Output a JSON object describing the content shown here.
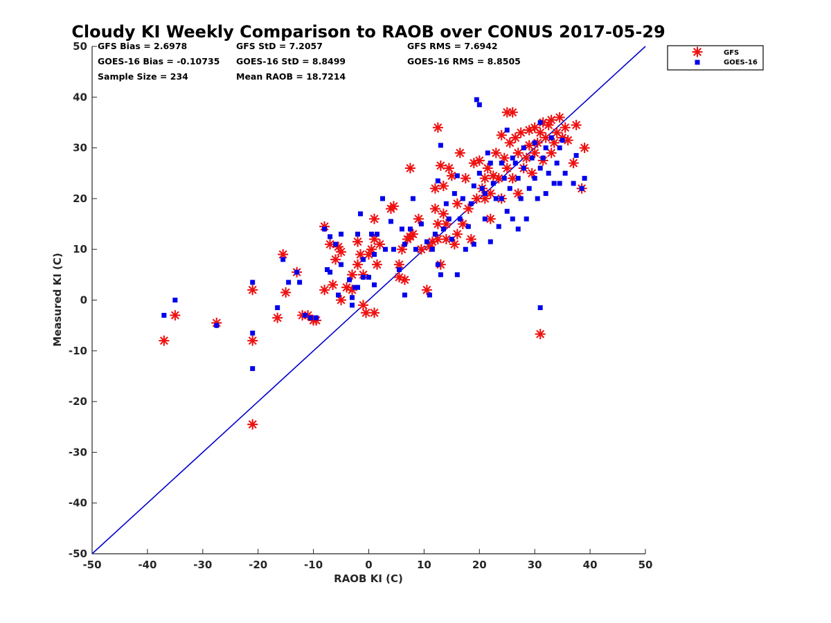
{
  "chart_data": {
    "type": "scatter",
    "title": "Cloudy KI Weekly Comparison to RAOB over CONUS 2017-05-29",
    "xlabel": "RAOB KI (C)",
    "ylabel": "Measured KI (C)",
    "xlim": [
      -50,
      50
    ],
    "ylim": [
      -50,
      50
    ],
    "xticks": [
      "-50",
      "-40",
      "-30",
      "-20",
      "-10",
      "0",
      "10",
      "20",
      "30",
      "40",
      "50"
    ],
    "yticks": [
      "50",
      "40",
      "30",
      "20",
      "10",
      "0",
      "-10",
      "-20",
      "-30",
      "-40",
      "-50"
    ],
    "grid": false,
    "legend_position": "top-right, outside plot",
    "stats": {
      "gfs_bias": "GFS Bias = 2.6978",
      "gfs_std": "GFS StD = 7.2057",
      "gfs_rms": "GFS RMS = 7.6942",
      "goes_bias": "GOES-16 Bias = -0.10735",
      "goes_std": "GOES-16 StD = 8.8499",
      "goes_rms": "GOES-16 RMS = 8.8505",
      "sample_size": "Sample Size = 234",
      "mean_raob": "Mean RAOB = 18.7214"
    },
    "reference_line": {
      "from": [
        -50,
        -50
      ],
      "to": [
        50,
        50
      ],
      "color": "#0000cc"
    },
    "series": [
      {
        "name": "GFS",
        "marker": "asterisk",
        "color": "#ee1111",
        "points": [
          [
            -37,
            -8
          ],
          [
            -35,
            -3
          ],
          [
            -27.5,
            -4.5
          ],
          [
            -21,
            -8
          ],
          [
            -21,
            2
          ],
          [
            -21,
            -24.5
          ],
          [
            -16.5,
            -3.5
          ],
          [
            -15.5,
            9
          ],
          [
            -15,
            1.5
          ],
          [
            -13,
            5.5
          ],
          [
            -12,
            -3
          ],
          [
            -11,
            -3
          ],
          [
            -10,
            -4
          ],
          [
            -9.5,
            -4
          ],
          [
            -8,
            14.5
          ],
          [
            -8,
            2
          ],
          [
            -7,
            11
          ],
          [
            -6.5,
            3
          ],
          [
            -6,
            8
          ],
          [
            -5.5,
            10.5
          ],
          [
            -5,
            9.5
          ],
          [
            -5,
            0
          ],
          [
            -4,
            2.5
          ],
          [
            -3,
            5
          ],
          [
            -3,
            2
          ],
          [
            -2,
            11.5
          ],
          [
            -2,
            7
          ],
          [
            -1.5,
            9
          ],
          [
            -1,
            -1
          ],
          [
            -1,
            5
          ],
          [
            -0.5,
            -2.5
          ],
          [
            0,
            9
          ],
          [
            0.5,
            10
          ],
          [
            1,
            12
          ],
          [
            1,
            -2.5
          ],
          [
            1,
            16
          ],
          [
            1.5,
            7
          ],
          [
            2,
            11
          ],
          [
            4,
            18
          ],
          [
            4.5,
            18.5
          ],
          [
            5.5,
            4.5
          ],
          [
            5.5,
            7
          ],
          [
            6,
            10
          ],
          [
            6.5,
            4
          ],
          [
            7,
            12
          ],
          [
            7.5,
            12.5
          ],
          [
            7.5,
            26
          ],
          [
            8,
            13
          ],
          [
            9,
            16
          ],
          [
            9.5,
            10
          ],
          [
            10.5,
            2
          ],
          [
            11,
            10.5
          ],
          [
            11.5,
            11.5
          ],
          [
            12,
            18
          ],
          [
            12,
            22
          ],
          [
            12.5,
            15
          ],
          [
            12.5,
            12
          ],
          [
            12.5,
            34
          ],
          [
            13,
            7
          ],
          [
            13,
            26.5
          ],
          [
            13.5,
            17
          ],
          [
            13.5,
            22.5
          ],
          [
            14,
            15
          ],
          [
            14,
            12
          ],
          [
            14.5,
            26
          ],
          [
            15,
            24.5
          ],
          [
            15.5,
            11
          ],
          [
            16,
            13
          ],
          [
            16,
            19
          ],
          [
            16.5,
            29
          ],
          [
            17,
            15
          ],
          [
            17.5,
            24
          ],
          [
            18,
            18
          ],
          [
            18.5,
            12
          ],
          [
            19,
            27
          ],
          [
            19.5,
            20
          ],
          [
            20,
            27.5
          ],
          [
            20.5,
            22
          ],
          [
            21,
            24
          ],
          [
            21,
            20
          ],
          [
            21.5,
            26
          ],
          [
            22,
            21
          ],
          [
            22,
            16
          ],
          [
            22.5,
            24.5
          ],
          [
            23,
            29
          ],
          [
            23.5,
            24
          ],
          [
            24,
            32.5
          ],
          [
            24,
            20
          ],
          [
            24.5,
            28
          ],
          [
            25,
            37
          ],
          [
            25,
            26
          ],
          [
            25.5,
            31
          ],
          [
            26,
            37
          ],
          [
            26,
            24
          ],
          [
            26.5,
            32
          ],
          [
            27,
            29
          ],
          [
            27,
            21
          ],
          [
            27.5,
            33
          ],
          [
            28,
            26
          ],
          [
            28.5,
            28
          ],
          [
            29,
            30.5
          ],
          [
            29,
            33.5
          ],
          [
            29.5,
            25
          ],
          [
            30,
            34
          ],
          [
            30,
            29
          ],
          [
            30.5,
            31
          ],
          [
            31,
            33
          ],
          [
            31,
            -6.7
          ],
          [
            31.5,
            35
          ],
          [
            31.5,
            27.5
          ],
          [
            32,
            32
          ],
          [
            32.5,
            34.5
          ],
          [
            33,
            29
          ],
          [
            33,
            35.5
          ],
          [
            33.5,
            31
          ],
          [
            34,
            33
          ],
          [
            34.5,
            36
          ],
          [
            35,
            32
          ],
          [
            35.5,
            34
          ],
          [
            36,
            31.5
          ],
          [
            37,
            27
          ],
          [
            37.5,
            34.5
          ],
          [
            38.5,
            22
          ],
          [
            39,
            30
          ]
        ]
      },
      {
        "name": "GOES-16",
        "marker": "square",
        "color": "#0000ee",
        "points": [
          [
            -37,
            -3
          ],
          [
            -35,
            0
          ],
          [
            -27.5,
            -5
          ],
          [
            -21,
            -6.5
          ],
          [
            -21,
            -13.5
          ],
          [
            -21,
            3.5
          ],
          [
            -16.5,
            -1.5
          ],
          [
            -15.5,
            8
          ],
          [
            -14.5,
            3.5
          ],
          [
            -13,
            5.5
          ],
          [
            -12.5,
            3.5
          ],
          [
            -11.5,
            -3
          ],
          [
            -10.5,
            -3.5
          ],
          [
            -9.5,
            -3.5
          ],
          [
            -8,
            14
          ],
          [
            -7.5,
            6
          ],
          [
            -7,
            5.5
          ],
          [
            -7,
            12.5
          ],
          [
            -6,
            11
          ],
          [
            -5.5,
            1
          ],
          [
            -5,
            13
          ],
          [
            -5,
            7
          ],
          [
            -3.5,
            4
          ],
          [
            -3,
            -1
          ],
          [
            -3,
            0.5
          ],
          [
            -2.5,
            2.5
          ],
          [
            -2,
            13
          ],
          [
            -2,
            2.5
          ],
          [
            -1.5,
            17
          ],
          [
            -1,
            8
          ],
          [
            -1,
            4.5
          ],
          [
            0,
            4.5
          ],
          [
            0.5,
            13
          ],
          [
            1,
            9
          ],
          [
            1,
            3
          ],
          [
            1.5,
            13
          ],
          [
            2.5,
            20
          ],
          [
            3,
            10
          ],
          [
            4,
            15.5
          ],
          [
            4.5,
            10
          ],
          [
            5.5,
            6
          ],
          [
            6,
            14
          ],
          [
            6.5,
            1
          ],
          [
            6.5,
            11
          ],
          [
            7.5,
            14
          ],
          [
            8,
            20
          ],
          [
            8.5,
            10
          ],
          [
            9.5,
            15
          ],
          [
            10.5,
            11.5
          ],
          [
            11,
            1
          ],
          [
            11.5,
            10
          ],
          [
            12,
            13
          ],
          [
            12.5,
            7
          ],
          [
            12.5,
            23.5
          ],
          [
            13,
            30.5
          ],
          [
            13,
            5
          ],
          [
            13.5,
            14
          ],
          [
            14,
            19
          ],
          [
            14.5,
            16
          ],
          [
            15,
            12
          ],
          [
            15.5,
            21
          ],
          [
            16,
            24.5
          ],
          [
            16,
            5
          ],
          [
            16.5,
            16
          ],
          [
            17,
            20
          ],
          [
            17.5,
            10
          ],
          [
            18,
            14.5
          ],
          [
            18.5,
            19
          ],
          [
            19,
            22.5
          ],
          [
            19,
            11
          ],
          [
            19.5,
            39.5
          ],
          [
            20,
            38.5
          ],
          [
            20,
            25
          ],
          [
            20.5,
            22
          ],
          [
            21,
            21
          ],
          [
            21,
            16
          ],
          [
            21.5,
            29
          ],
          [
            22,
            27
          ],
          [
            22,
            11.5
          ],
          [
            22.5,
            23
          ],
          [
            23,
            20
          ],
          [
            23.5,
            14.5
          ],
          [
            24,
            27
          ],
          [
            24,
            20
          ],
          [
            24.5,
            24
          ],
          [
            25,
            33.5
          ],
          [
            25,
            17.5
          ],
          [
            25.5,
            22
          ],
          [
            26,
            28
          ],
          [
            26,
            16
          ],
          [
            26.5,
            27
          ],
          [
            27,
            14
          ],
          [
            27,
            24
          ],
          [
            27.5,
            20
          ],
          [
            28,
            26
          ],
          [
            28,
            30
          ],
          [
            28.5,
            16
          ],
          [
            29,
            22
          ],
          [
            29.5,
            28
          ],
          [
            30,
            31
          ],
          [
            30,
            24
          ],
          [
            30.5,
            20
          ],
          [
            31,
            35
          ],
          [
            31,
            26
          ],
          [
            31,
            -1.5
          ],
          [
            31.5,
            28
          ],
          [
            32,
            30
          ],
          [
            32,
            21
          ],
          [
            32.5,
            25
          ],
          [
            33,
            32
          ],
          [
            33.5,
            23
          ],
          [
            34,
            27
          ],
          [
            34.5,
            30
          ],
          [
            34.5,
            23
          ],
          [
            35,
            31.5
          ],
          [
            35.5,
            25
          ],
          [
            37,
            23
          ],
          [
            37.5,
            28.5
          ],
          [
            38.5,
            22
          ],
          [
            39,
            24
          ]
        ]
      }
    ]
  }
}
